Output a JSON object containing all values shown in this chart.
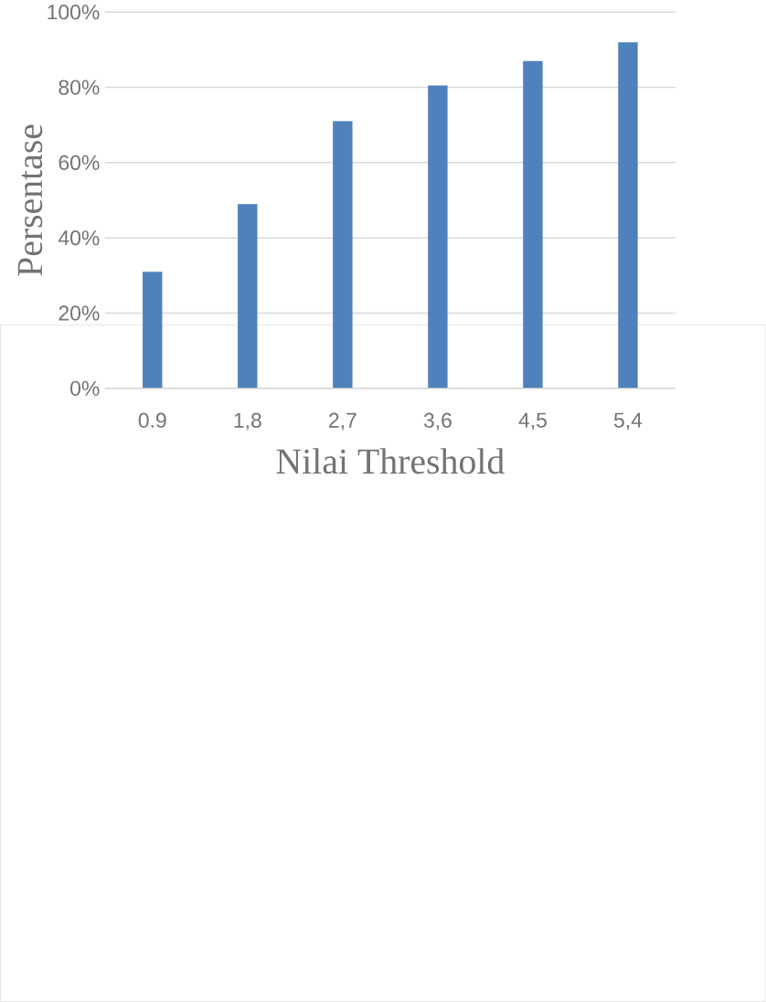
{
  "chart_data": {
    "type": "bar",
    "xlabel": "Nilai Threshold",
    "ylabel": "Persentase",
    "categories": [
      "0.9",
      "1,8",
      "2,7",
      "3,6",
      "4,5",
      "5,4"
    ],
    "values": [
      31,
      49,
      71,
      80.5,
      87,
      92
    ],
    "color": "#4f81bd",
    "ylim": [
      0,
      100
    ],
    "yticks": [
      {
        "value": 0,
        "label": "0%"
      },
      {
        "value": 20,
        "label": "20%"
      },
      {
        "value": 40,
        "label": "40%"
      },
      {
        "value": 60,
        "label": "60%"
      },
      {
        "value": 80,
        "label": "80%"
      },
      {
        "value": 100,
        "label": "100%"
      }
    ],
    "grid": "y"
  }
}
